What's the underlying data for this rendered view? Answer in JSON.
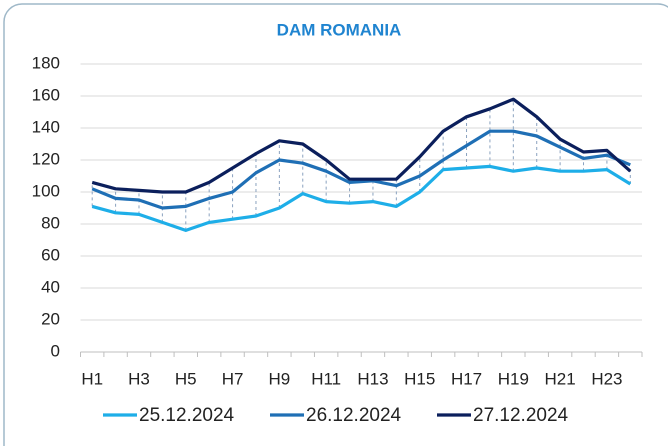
{
  "chart_data": {
    "type": "line",
    "title": "DAM ROMANIA",
    "categories": [
      "H1",
      null,
      "H3",
      null,
      "H5",
      null,
      "H7",
      null,
      "H9",
      null,
      "H11",
      null,
      "H13",
      null,
      "H15",
      null,
      "H17",
      null,
      "H19",
      null,
      "H21",
      null,
      "H23",
      null
    ],
    "series": [
      {
        "name": "25.12.2024",
        "color": "#1eaee8",
        "values": [
          91,
          87,
          86,
          81,
          76,
          81,
          83,
          85,
          90,
          99,
          94,
          93,
          94,
          91,
          100,
          114,
          115,
          116,
          113,
          115,
          113,
          113,
          114,
          105
        ]
      },
      {
        "name": "26.12.2024",
        "color": "#1f6fb5",
        "values": [
          102,
          96,
          95,
          90,
          91,
          96,
          100,
          112,
          120,
          118,
          113,
          106,
          107,
          104,
          110,
          120,
          129,
          138,
          138,
          135,
          128,
          121,
          123,
          117
        ]
      },
      {
        "name": "27.12.2024",
        "color": "#0b1f5c",
        "values": [
          106,
          102,
          101,
          100,
          100,
          106,
          115,
          124,
          132,
          130,
          120,
          108,
          108,
          108,
          122,
          138,
          147,
          152,
          158,
          147,
          133,
          125,
          126,
          113
        ]
      }
    ],
    "ylim": [
      0,
      180
    ],
    "yticks": [
      0,
      20,
      40,
      60,
      80,
      100,
      120,
      140,
      160,
      180
    ],
    "grid": true
  }
}
